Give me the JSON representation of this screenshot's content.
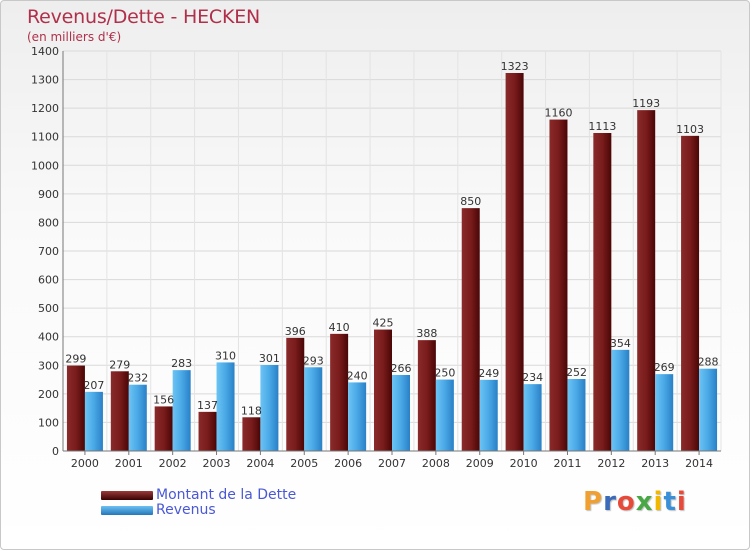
{
  "header": {
    "title": "Revenus/Dette - HECKEN",
    "subtitle": "(en milliers d'€)"
  },
  "legend": {
    "dette_label": "Montant de la Dette",
    "revenus_label": "Revenus"
  },
  "logo": {
    "text": "Proxiti",
    "letters": [
      "P",
      "r",
      "o",
      "x",
      "i",
      "t",
      "i"
    ],
    "colors": [
      "#f0a030",
      "#3a6ab8",
      "#e84a3a",
      "#49a845",
      "#f0b800",
      "#3a90d8",
      "#e84a3a"
    ]
  },
  "colors": {
    "dette_top": "#9a3a3a",
    "dette_bottom": "#3a0000",
    "revenus_top": "#6cc0f2",
    "revenus_bottom": "#2477b8",
    "title": "#b0304a",
    "legend_text": "#4a58d6"
  },
  "chart_data": {
    "type": "bar",
    "categories": [
      "2000",
      "2001",
      "2002",
      "2003",
      "2004",
      "2005",
      "2006",
      "2007",
      "2008",
      "2009",
      "2010",
      "2011",
      "2012",
      "2013",
      "2014"
    ],
    "series": [
      {
        "name": "Montant de la Dette",
        "values": [
          299,
          279,
          156,
          137,
          118,
          396,
          410,
          425,
          388,
          850,
          1323,
          1160,
          1113,
          1193,
          1103
        ]
      },
      {
        "name": "Revenus",
        "values": [
          207,
          232,
          283,
          310,
          301,
          293,
          240,
          266,
          250,
          249,
          234,
          252,
          354,
          269,
          288
        ]
      }
    ],
    "ylim": [
      0,
      1400
    ],
    "yticks": [
      0,
      100,
      200,
      300,
      400,
      500,
      600,
      700,
      800,
      900,
      1000,
      1100,
      1200,
      1300,
      1400
    ],
    "grid": true,
    "legend_position": "bottom-left"
  }
}
